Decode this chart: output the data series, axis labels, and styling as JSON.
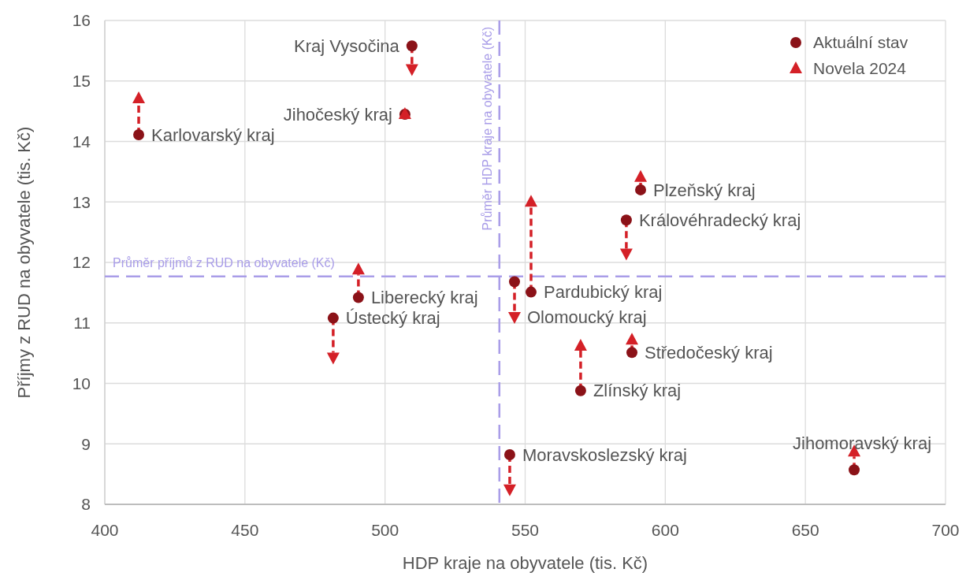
{
  "chart_data": {
    "type": "scatter",
    "xlabel": "HDP kraje na obyvatele (tis. Kč)",
    "ylabel": "Příjmy z RUD na obyvatele (tis. Kč)",
    "xlim": [
      400,
      700
    ],
    "xticks": [
      400,
      450,
      500,
      550,
      600,
      650,
      700
    ],
    "ylim": [
      8,
      16
    ],
    "yticks": [
      8,
      9,
      10,
      11,
      12,
      13,
      14,
      15,
      16
    ],
    "grid": true,
    "legend": "top right",
    "series": [
      {
        "name": "Aktuální stav",
        "color": "#8b1218",
        "marker": "circle",
        "x": [
          509.6,
          507.1,
          412.1,
          591.2,
          586.1,
          552.1,
          546.2,
          490.5,
          481.5,
          588.1,
          569.8,
          544.5,
          667.4
        ],
        "values": [
          15.58,
          14.45,
          14.11,
          13.2,
          12.7,
          11.51,
          11.68,
          11.42,
          11.08,
          10.51,
          9.88,
          8.82,
          8.57
        ]
      },
      {
        "name": "Novela 2024",
        "color": "#d42027",
        "marker": "triangle",
        "x": [
          509.6,
          507.1,
          412.1,
          591.2,
          586.1,
          552.1,
          546.2,
          490.5,
          481.5,
          588.1,
          569.8,
          544.5,
          667.4
        ],
        "values": [
          15.2,
          14.45,
          14.71,
          13.41,
          12.15,
          13.0,
          11.1,
          11.88,
          10.43,
          10.72,
          10.62,
          8.25,
          8.87
        ]
      }
    ],
    "ref_lines": [
      {
        "axis": "y",
        "value": 11.77,
        "label": "Průměr příjmů z RUD na obyvatele (Kč)",
        "color": "#a99de8",
        "line_style": "dashed"
      },
      {
        "axis": "x",
        "value": 540.8,
        "label": "Průměr HDP kraje na obyvatele (Kč)",
        "color": "#a99de8",
        "line_style": "dashed"
      }
    ],
    "annotations": [
      {
        "text": "Kraj Vysočina",
        "x": 509.6,
        "y": 15.58
      },
      {
        "text": "Jihočeský kraj",
        "x": 507.1,
        "y": 14.45
      },
      {
        "text": "Karlovarský kraj",
        "x": 412.1,
        "y": 14.11
      },
      {
        "text": "Plzeňský kraj",
        "x": 591.2,
        "y": 13.2
      },
      {
        "text": "Královéhradecký kraj",
        "x": 586.1,
        "y": 12.7
      },
      {
        "text": "Pardubický kraj",
        "x": 552.1,
        "y": 11.51
      },
      {
        "text": "Olomoucký kraj",
        "x": 546.2,
        "y": 11.1
      },
      {
        "text": "Liberecký kraj",
        "x": 490.5,
        "y": 11.42
      },
      {
        "text": "Ústecký kraj",
        "x": 481.5,
        "y": 11.08
      },
      {
        "text": "Středočeský kraj",
        "x": 588.1,
        "y": 10.51
      },
      {
        "text": "Zlínský kraj",
        "x": 569.8,
        "y": 9.88
      },
      {
        "text": "Moravskoslezský kraj",
        "x": 544.5,
        "y": 8.82
      },
      {
        "text": "Jihomoravský kraj",
        "x": 667.4,
        "y": 8.57
      }
    ]
  }
}
